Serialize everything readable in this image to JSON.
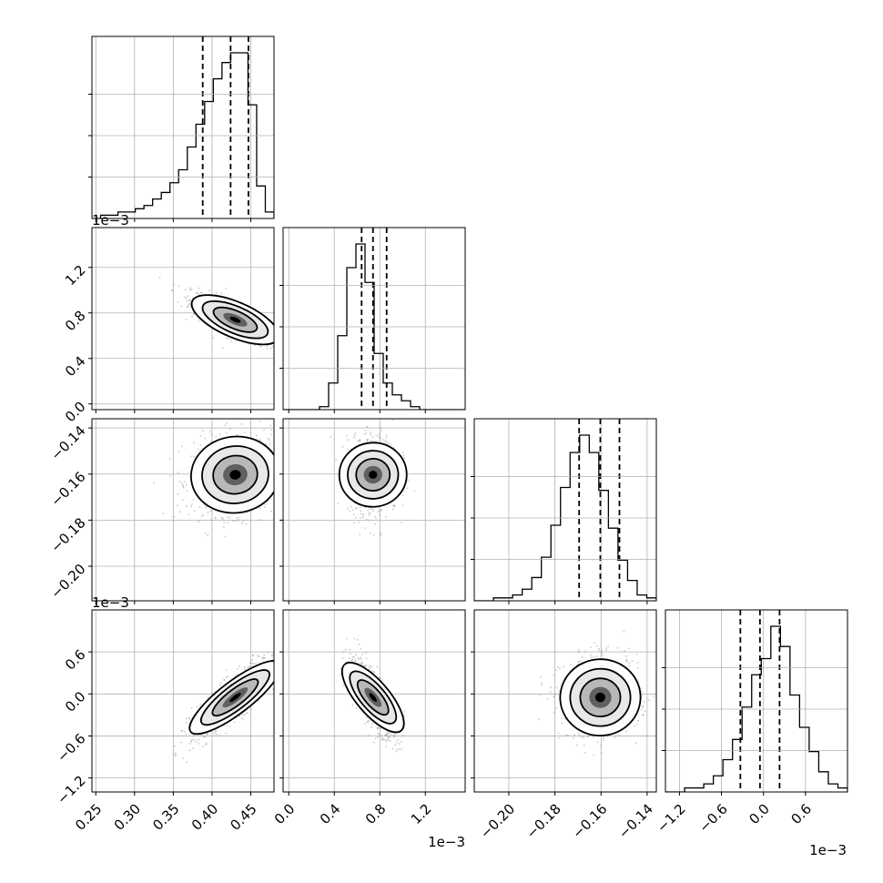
{
  "chart_data": {
    "type": "corner",
    "colors": {
      "line": "#000000",
      "grid": "#b0b0b0",
      "scatter": "#808080"
    },
    "parameters": [
      {
        "range": [
          0.245,
          0.48
        ],
        "ticks": [
          0.25,
          0.3,
          0.35,
          0.4,
          0.45
        ],
        "tick_labels": [
          "0.25",
          "0.30",
          "0.35",
          "0.40",
          "0.45"
        ],
        "offset_label": "",
        "quantiles": [
          0.388,
          0.424,
          0.447
        ],
        "center": 0.43,
        "spread": 0.028
      },
      {
        "range": [
          -0.05,
          1.55
        ],
        "ticks": [
          0.0,
          0.4,
          0.8,
          1.2
        ],
        "tick_labels": [
          "0.0",
          "0.4",
          "0.8",
          "1.2"
        ],
        "offset_label": "1e−3",
        "quantiles": [
          0.64,
          0.74,
          0.86
        ],
        "center": 0.74,
        "spread": 0.11
      },
      {
        "range": [
          -0.215,
          -0.136
        ],
        "ticks": [
          -0.2,
          -0.18,
          -0.16,
          -0.14
        ],
        "tick_labels": [
          "−0.20",
          "−0.18",
          "−0.16",
          "−0.14"
        ],
        "offset_label": "",
        "quantiles": [
          -0.1695,
          -0.1603,
          -0.152
        ],
        "center": -0.1603,
        "spread": 0.0085
      },
      {
        "range": [
          -1.4,
          1.2
        ],
        "ticks": [
          -1.2,
          -0.6,
          0.0,
          0.6
        ],
        "tick_labels": [
          "−1.2",
          "−0.6",
          "0.0",
          "0.6"
        ],
        "offset_label": "1e−3",
        "quantiles": [
          -0.33,
          -0.05,
          0.23
        ],
        "center": -0.05,
        "spread": 0.28
      }
    ],
    "histograms": [
      {
        "counts": [
          0,
          1,
          1,
          2,
          2,
          3,
          4,
          6,
          8,
          11,
          15,
          22,
          29,
          36,
          43,
          48,
          51,
          51,
          35,
          10,
          2
        ]
      },
      {
        "counts": [
          0,
          0,
          0,
          0,
          1,
          9,
          25,
          48,
          56,
          43,
          19,
          9,
          5,
          3,
          1,
          0,
          0,
          0,
          0,
          0
        ]
      },
      {
        "counts": [
          0,
          0,
          1,
          1,
          2,
          4,
          8,
          15,
          26,
          39,
          51,
          57,
          51,
          38,
          25,
          14,
          7,
          2,
          1
        ]
      },
      {
        "counts": [
          0,
          0,
          1,
          1,
          2,
          4,
          8,
          13,
          21,
          29,
          33,
          41,
          36,
          24,
          16,
          10,
          5,
          2,
          1
        ]
      }
    ],
    "correlations": [
      [
        1,
        -0.75,
        0.15,
        0.85
      ],
      [
        -0.75,
        1,
        0.05,
        -0.75
      ],
      [
        0.15,
        0.05,
        1,
        0.05
      ],
      [
        0.85,
        -0.75,
        0.05,
        1
      ]
    ]
  }
}
